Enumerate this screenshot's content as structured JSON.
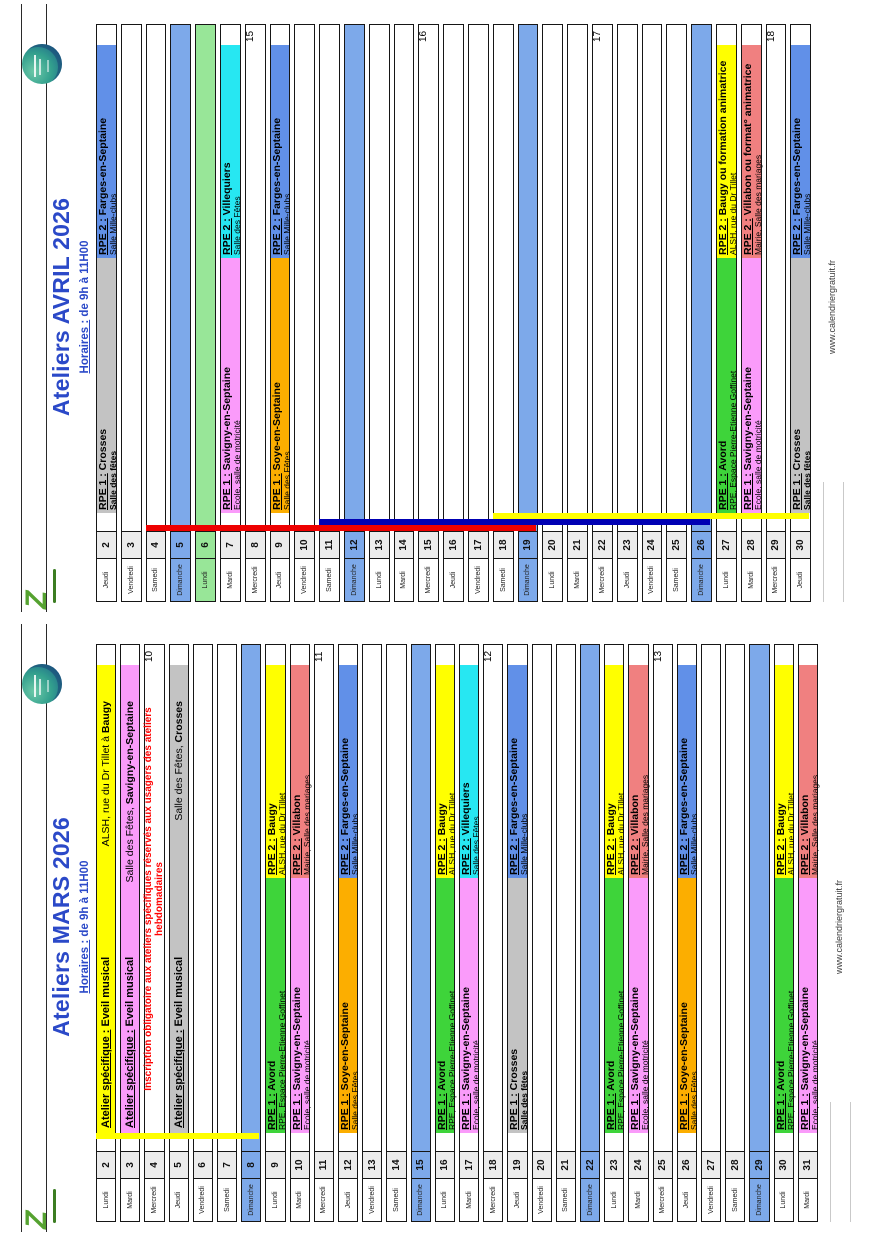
{
  "document": {
    "type": "printed-calendar-sheet",
    "source_footer": "www.calendriergratuit.fr"
  },
  "colors": {
    "title_blue": "#2b49c8",
    "sunday_row": "#7da9ea",
    "holiday_row": "#98e698",
    "number_cell": "#ececec",
    "notice_red": "#ff0000",
    "avord_green": "#3ed43a",
    "baugy_yellow": "#ffff00",
    "savigny_pink": "#fa9bfa",
    "villabon_salmon": "#f08080",
    "soye_orange": "#fcae00",
    "villequiers_cyan": "#27e7f2",
    "farges_blue": "#6190e8",
    "crosses_grey": "#c3c3c3",
    "line_red": "#ee0000",
    "line_navy": "#0000b4",
    "line_yellow": "#ffff00"
  },
  "pages": [
    {
      "title": "Ateliers AVRIL 2026",
      "hours_prefix": "Horaires :",
      "hours_rest": " de 9h à 11H00",
      "footer": "www.calendriergratuit.fr",
      "week_numbers": [
        {
          "label": "15",
          "day": 8
        },
        {
          "label": "16",
          "day": 15
        },
        {
          "label": "17",
          "day": 22
        },
        {
          "label": "18",
          "day": 29
        }
      ],
      "vacation_lines": [
        {
          "zone": "red",
          "color": "#ee0000",
          "slot": 0,
          "from": 4,
          "to": 19
        },
        {
          "zone": "navy",
          "color": "#0000b4",
          "slot": 1,
          "from": 11,
          "to": 26
        },
        {
          "zone": "yellow",
          "color": "#ffff00",
          "slot": 2,
          "from": 18,
          "to": 30
        }
      ],
      "days": [
        {
          "num": "2",
          "name": "Jeudi",
          "kind": "events",
          "rpe1": {
            "prefix": "RPE 1 :",
            "title": " Crosses",
            "venue": "Salle des fêtes",
            "venue_bold": true,
            "color": "#c3c3c3"
          },
          "rpe2": {
            "prefix": "RPE 2 :",
            "title": " Farges-en-Septaine",
            "venue": "Salle Mille-clubs",
            "color": "#6190e8"
          }
        },
        {
          "num": "3",
          "name": "Vendredi",
          "kind": "empty"
        },
        {
          "num": "4",
          "name": "Samedi",
          "kind": "empty"
        },
        {
          "num": "5",
          "name": "Dimanche",
          "kind": "sunday"
        },
        {
          "num": "6",
          "name": "Lundi",
          "kind": "holiday"
        },
        {
          "num": "7",
          "name": "Mardi",
          "kind": "events",
          "rpe1": {
            "prefix": "RPE 1 :",
            "title": " Savigny-en-Septaine",
            "venue": "Ecole, salle de motricité",
            "color": "#fa9bfa"
          },
          "rpe2": {
            "prefix": "RPE 2 :",
            "title": " Villequiers",
            "venue": "Salle des Fêtes",
            "color": "#27e7f2"
          }
        },
        {
          "num": "8",
          "name": "Mercredi",
          "kind": "empty"
        },
        {
          "num": "9",
          "name": "Jeudi",
          "kind": "events",
          "rpe1": {
            "prefix": "RPE 1 :",
            "title": " Soye-en-Septaine",
            "venue": "Salle des Fêtes",
            "color": "#fcae00"
          },
          "rpe2": {
            "prefix": "RPE 2 :",
            "title": " Farges-en-Septaine",
            "venue": "Salle Mille-clubs",
            "color": "#6190e8"
          }
        },
        {
          "num": "10",
          "name": "Vendredi",
          "kind": "empty"
        },
        {
          "num": "11",
          "name": "Samedi",
          "kind": "empty"
        },
        {
          "num": "12",
          "name": "Dimanche",
          "kind": "sunday"
        },
        {
          "num": "13",
          "name": "Lundi",
          "kind": "empty"
        },
        {
          "num": "14",
          "name": "Mardi",
          "kind": "empty"
        },
        {
          "num": "15",
          "name": "Mercredi",
          "kind": "empty"
        },
        {
          "num": "16",
          "name": "Jeudi",
          "kind": "empty"
        },
        {
          "num": "17",
          "name": "Vendredi",
          "kind": "empty"
        },
        {
          "num": "18",
          "name": "Samedi",
          "kind": "empty"
        },
        {
          "num": "19",
          "name": "Dimanche",
          "kind": "sunday"
        },
        {
          "num": "20",
          "name": "Lundi",
          "kind": "empty"
        },
        {
          "num": "21",
          "name": "Mardi",
          "kind": "empty"
        },
        {
          "num": "22",
          "name": "Mercredi",
          "kind": "empty"
        },
        {
          "num": "23",
          "name": "Jeudi",
          "kind": "empty"
        },
        {
          "num": "24",
          "name": "Vendredi",
          "kind": "empty"
        },
        {
          "num": "25",
          "name": "Samedi",
          "kind": "empty"
        },
        {
          "num": "26",
          "name": "Dimanche",
          "kind": "sunday"
        },
        {
          "num": "27",
          "name": "Lundi",
          "kind": "events",
          "rpe1": {
            "prefix": "RPE 1 :",
            "title": " Avord",
            "venue": "RPE, Espace Pierre-Etienne Goffinet",
            "color": "#3ed43a"
          },
          "rpe2": {
            "prefix": "RPE 2 :",
            "title": " Baugy ou formation animatrice",
            "venue": "ALSH, rue du Dr Tillet",
            "color": "#ffff00"
          }
        },
        {
          "num": "28",
          "name": "Mardi",
          "kind": "events",
          "rpe1": {
            "prefix": "RPE 1 :",
            "title": " Savigny-en-Septaine",
            "venue": "Ecole, salle de motricité",
            "color": "#fa9bfa"
          },
          "rpe2": {
            "prefix": "RPE 2 :",
            "title": " Villabon ou format° animatrice",
            "venue": "Mairie, Salle des mariages",
            "color": "#f08080"
          }
        },
        {
          "num": "29",
          "name": "Mercredi",
          "kind": "empty"
        },
        {
          "num": "30",
          "name": "Jeudi",
          "kind": "events",
          "rpe1": {
            "prefix": "RPE 1 :",
            "title": " Crosses",
            "venue": "Salle des fêtes",
            "venue_bold": true,
            "color": "#c3c3c3"
          },
          "rpe2": {
            "prefix": "RPE 2 :",
            "title": " Farges-en-Septaine",
            "venue": "Salle Mille-clubs",
            "color": "#6190e8"
          }
        }
      ]
    },
    {
      "title": "Ateliers MARS 2026",
      "hours_prefix": "Horaires :",
      "hours_rest": " de 9h à 11H00",
      "footer": "www.calendriergratuit.fr",
      "week_numbers": [
        {
          "label": "10",
          "day": 4
        },
        {
          "label": "11",
          "day": 11
        },
        {
          "label": "12",
          "day": 18
        },
        {
          "label": "13",
          "day": 25
        }
      ],
      "vacation_lines": [
        {
          "zone": "yellow",
          "color": "#ffff00",
          "slot": 2,
          "from": 2,
          "to": 8
        }
      ],
      "days": [
        {
          "num": "2",
          "name": "Lundi",
          "kind": "special",
          "color": "#ffff00",
          "left_u": "Atelier spécifique :",
          "left_rest": " Eveil musical",
          "right": "ALSH, rue du Dr Tillet à ",
          "right_bold": "Baugy"
        },
        {
          "num": "3",
          "name": "Mardi",
          "kind": "special",
          "color": "#fa9bfa",
          "left_u": "Atelier spécifique :",
          "left_rest": " Eveil musical",
          "right": "Salle des Fêtes, ",
          "right_bold": "Savigny-en-Septaine"
        },
        {
          "num": "4",
          "name": "Mercredi",
          "kind": "notice",
          "line1": "Inscription obligatoire aux ateliers spécifiques réservés  aux usagers des ateliers",
          "line2": "hebdomadaires"
        },
        {
          "num": "5",
          "name": "Jeudi",
          "kind": "special",
          "color": "#c3c3c3",
          "left_u": "Atelier spécifique :",
          "left_rest": " Eveil musical",
          "right": "Salle des Fêtes, ",
          "right_bold": "Crosses"
        },
        {
          "num": "6",
          "name": "Vendredi",
          "kind": "empty"
        },
        {
          "num": "7",
          "name": "Samedi",
          "kind": "empty"
        },
        {
          "num": "8",
          "name": "Dimanche",
          "kind": "sunday"
        },
        {
          "num": "9",
          "name": "Lundi",
          "kind": "events",
          "rpe1": {
            "prefix": "RPE 1 :",
            "title": " Avord",
            "venue": "RPE, Espace Pierre-Etienne Goffinet",
            "color": "#3ed43a"
          },
          "rpe2": {
            "prefix": "RPE 2 :",
            "title": " Baugy",
            "venue": "ALSH, rue du Dr Tillet",
            "color": "#ffff00"
          }
        },
        {
          "num": "10",
          "name": "Mardi",
          "kind": "events",
          "rpe1": {
            "prefix": "RPE 1 :",
            "title": " Savigny-en-Septaine",
            "venue": "Ecole, salle de motricité",
            "color": "#fa9bfa"
          },
          "rpe2": {
            "prefix": "RPE 2 :",
            "title": " Villabon",
            "venue": "Mairie, Salle des mariages",
            "color": "#f08080"
          }
        },
        {
          "num": "11",
          "name": "Mercredi",
          "kind": "empty"
        },
        {
          "num": "12",
          "name": "Jeudi",
          "kind": "events",
          "rpe1": {
            "prefix": "RPE 1 :",
            "title": " Soye-en-Septaine",
            "venue": "Salle des Fêtes",
            "color": "#fcae00"
          },
          "rpe2": {
            "prefix": "RPE 2 :",
            "title": " Farges-en-Septaine",
            "venue": "Salle Mille-clubs",
            "color": "#6190e8"
          }
        },
        {
          "num": "13",
          "name": "Vendredi",
          "kind": "empty"
        },
        {
          "num": "14",
          "name": "Samedi",
          "kind": "empty"
        },
        {
          "num": "15",
          "name": "Dimanche",
          "kind": "sunday"
        },
        {
          "num": "16",
          "name": "Lundi",
          "kind": "events",
          "rpe1": {
            "prefix": "RPE 1 :",
            "title": " Avord",
            "venue": "RPE, Espace Pierre-Etienne Goffinet",
            "color": "#3ed43a"
          },
          "rpe2": {
            "prefix": "RPE 2 :",
            "title": " Baugy",
            "venue": "ALSH, rue du Dr Tillet",
            "color": "#ffff00"
          }
        },
        {
          "num": "17",
          "name": "Mardi",
          "kind": "events",
          "rpe1": {
            "prefix": "RPE 1 :",
            "title": " Savigny-en-Septaine",
            "venue": "Ecole, salle de motricité",
            "color": "#fa9bfa"
          },
          "rpe2": {
            "prefix": "RPE 2 :",
            "title": " Villequiers",
            "venue": "Salle des Fêtes",
            "color": "#27e7f2"
          }
        },
        {
          "num": "18",
          "name": "Mercredi",
          "kind": "empty"
        },
        {
          "num": "19",
          "name": "Jeudi",
          "kind": "events",
          "rpe1": {
            "prefix": "RPE 1 :",
            "title": " Crosses",
            "venue": "Salle des fêtes",
            "venue_bold": true,
            "color": "#c3c3c3"
          },
          "rpe2": {
            "prefix": "RPE 2 :",
            "title": " Farges-en-Septaine",
            "venue": "Salle Mille-clubs",
            "color": "#6190e8"
          }
        },
        {
          "num": "20",
          "name": "Vendredi",
          "kind": "empty"
        },
        {
          "num": "21",
          "name": "Samedi",
          "kind": "empty"
        },
        {
          "num": "22",
          "name": "Dimanche",
          "kind": "sunday"
        },
        {
          "num": "23",
          "name": "Lundi",
          "kind": "events",
          "rpe1": {
            "prefix": "RPE 1 :",
            "title": " Avord",
            "venue": "RPE, Espace Pierre-Etienne Goffinet",
            "color": "#3ed43a"
          },
          "rpe2": {
            "prefix": "RPE 2 :",
            "title": " Baugy",
            "venue": "ALSH, rue du Dr Tillet",
            "color": "#ffff00"
          }
        },
        {
          "num": "24",
          "name": "Mardi",
          "kind": "events",
          "rpe1": {
            "prefix": "RPE 1 :",
            "title": " Savigny-en-Septaine",
            "venue": "Ecole, salle de motricité",
            "color": "#fa9bfa"
          },
          "rpe2": {
            "prefix": "RPE 2 :",
            "title": " Villabon",
            "venue": "Mairie, Salle des mariages",
            "color": "#f08080"
          }
        },
        {
          "num": "25",
          "name": "Mercredi",
          "kind": "empty"
        },
        {
          "num": "26",
          "name": "Jeudi",
          "kind": "events",
          "rpe1": {
            "prefix": "RPE 1 :",
            "title": " Soye-en-Septaine",
            "venue": "Salle des Fêtes",
            "color": "#fcae00"
          },
          "rpe2": {
            "prefix": "RPE 2 :",
            "title": " Farges-en-Septaine",
            "venue": "Salle Mille-clubs",
            "color": "#6190e8"
          }
        },
        {
          "num": "27",
          "name": "Vendredi",
          "kind": "empty"
        },
        {
          "num": "28",
          "name": "Samedi",
          "kind": "empty"
        },
        {
          "num": "29",
          "name": "Dimanche",
          "kind": "sunday"
        },
        {
          "num": "30",
          "name": "Lundi",
          "kind": "events",
          "rpe1": {
            "prefix": "RPE 1 :",
            "title": " Avord",
            "venue": "RPE, Espace Pierre-Etienne Goffinet",
            "color": "#3ed43a"
          },
          "rpe2": {
            "prefix": "RPE 2 :",
            "title": " Baugy",
            "venue": "ALSH, rue du Dr Tillet",
            "color": "#ffff00"
          }
        },
        {
          "num": "31",
          "name": "Mardi",
          "kind": "events",
          "rpe1": {
            "prefix": "RPE 1 :",
            "title": " Savigny-en-Septaine",
            "venue": "Ecole, salle de motricité",
            "color": "#fa9bfa"
          },
          "rpe2": {
            "prefix": "RPE 2 :",
            "title": " Villabon",
            "venue": "Mairie, Salle des mariages",
            "color": "#f08080"
          }
        }
      ]
    }
  ]
}
